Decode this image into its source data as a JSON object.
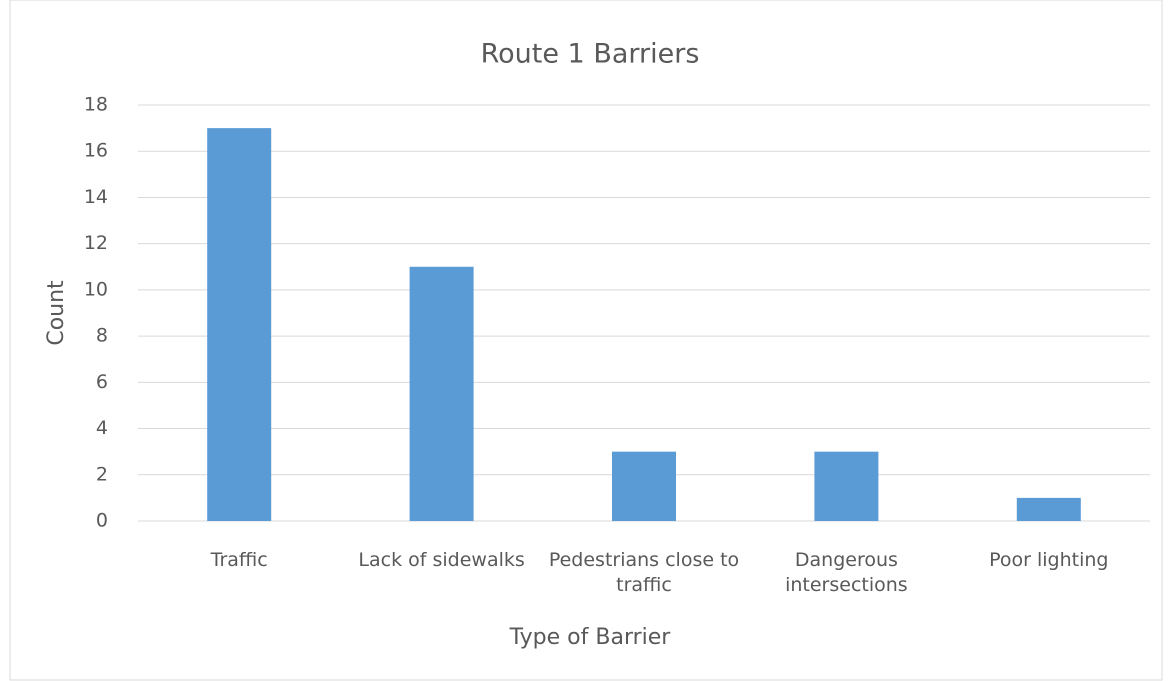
{
  "chart_data": {
    "type": "bar",
    "title": "Route 1 Barriers",
    "x_label": "Type of Barrier",
    "y_label": "Count",
    "categories": [
      "Traffic",
      "Lack of sidewalks",
      "Pedestrians close to traffic",
      "Dangerous intersections",
      "Poor lighting"
    ],
    "values": [
      17,
      11,
      3,
      3,
      1
    ],
    "color": "#5b9bd5",
    "ylim": [
      0,
      18
    ],
    "yticks": [
      0,
      2,
      4,
      6,
      8,
      10,
      12,
      14,
      16,
      18
    ],
    "grid": true
  }
}
